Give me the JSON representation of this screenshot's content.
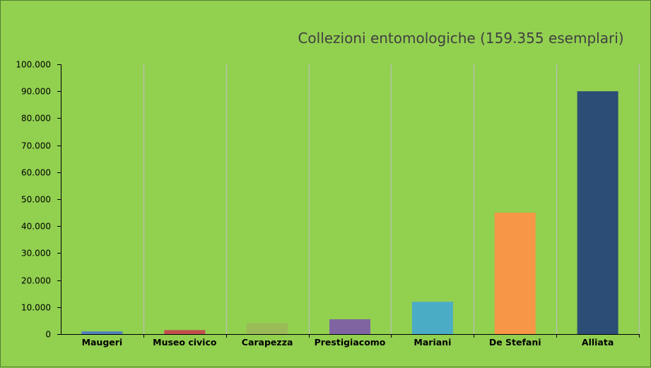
{
  "chart_data": {
    "type": "bar",
    "title": "Collezioni entomologiche (159.355 esemplari)",
    "xlabel": "",
    "ylabel": "",
    "categories": [
      "Maugeri",
      "Museo civico",
      "Carapezza",
      "Prestigiacomo",
      "Mariani",
      "De Stefani",
      "Alliata"
    ],
    "values": [
      1000,
      1500,
      4000,
      5500,
      12000,
      45000,
      90000
    ],
    "bar_colors": [
      "#4f81bd",
      "#c0504d",
      "#9bbb59",
      "#8064a2",
      "#4bacc6",
      "#f79646",
      "#2c4d75"
    ],
    "ylim": [
      0,
      100000
    ],
    "yticks": [
      0,
      10000,
      20000,
      30000,
      40000,
      50000,
      60000,
      70000,
      80000,
      90000,
      100000
    ],
    "ytick_labels": [
      "0",
      "10.000",
      "20.000",
      "30.000",
      "40.000",
      "50.000",
      "60.000",
      "70.000",
      "80.000",
      "90.000",
      "100.000"
    ],
    "grid": "vertical-category-separators",
    "legend": "none",
    "background": "#92d050"
  }
}
